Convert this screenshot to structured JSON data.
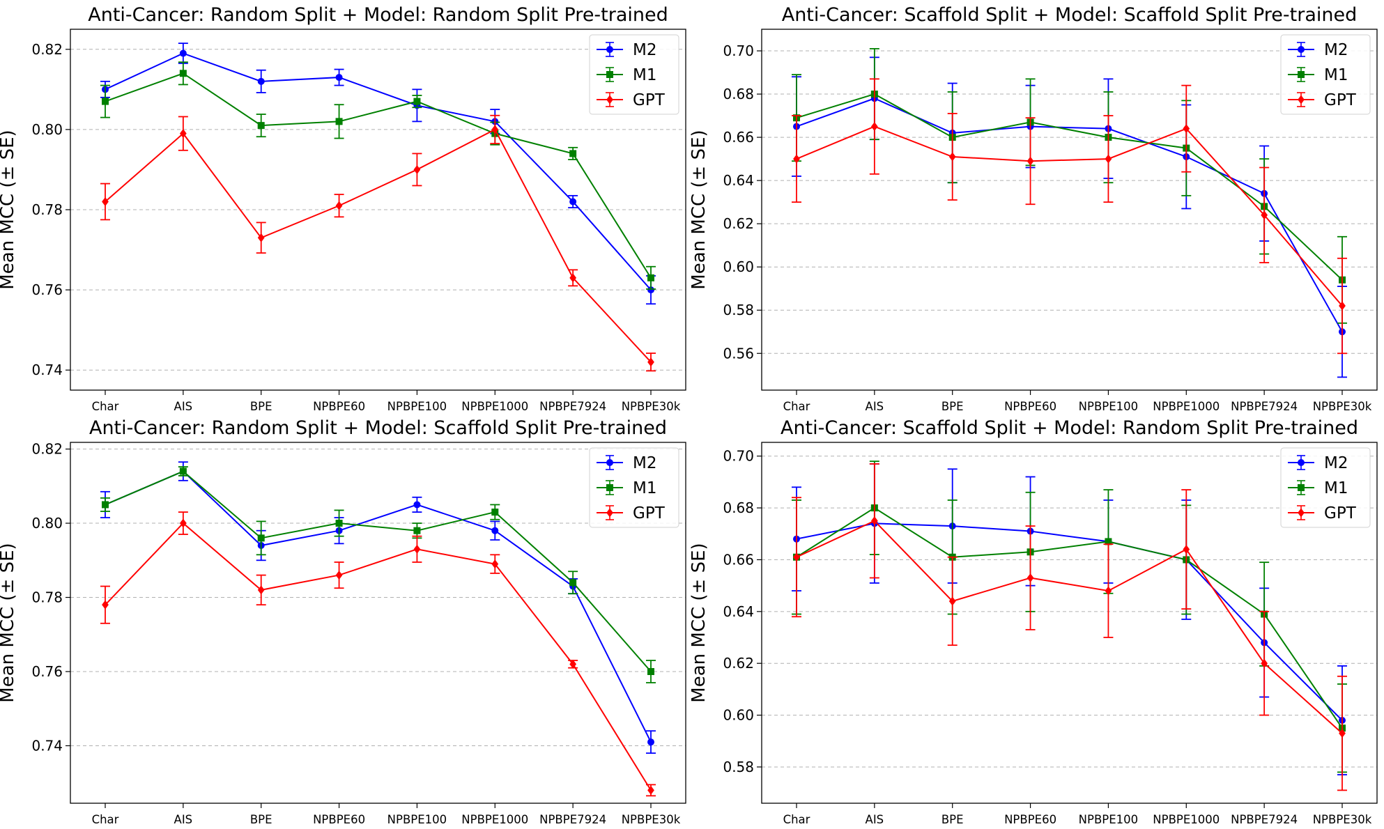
{
  "chart_data": [
    {
      "type": "line",
      "title": "Anti-Cancer: Random Split + Model: Random Split Pre-trained",
      "xlabel": "",
      "ylabel": "Mean MCC (± SE)",
      "categories": [
        "Char",
        "AIS",
        "BPE",
        "NPBPE60",
        "NPBPE100",
        "NPBPE1000",
        "NPBPE7924",
        "NPBPE30k"
      ],
      "ylim": [
        0.735,
        0.825
      ],
      "yticks": [
        "0.74",
        "0.76",
        "0.78",
        "0.80",
        "0.82"
      ],
      "grid": "y-dashed",
      "legend": "top-right",
      "series": [
        {
          "name": "M2",
          "color": "#0000ff",
          "marker": "circle",
          "values": [
            0.81,
            0.819,
            0.812,
            0.813,
            0.806,
            0.802,
            0.782,
            0.76
          ],
          "errors": [
            0.002,
            0.0025,
            0.0028,
            0.002,
            0.004,
            0.003,
            0.0015,
            0.0035
          ]
        },
        {
          "name": "M1",
          "color": "#008000",
          "marker": "square",
          "values": [
            0.807,
            0.814,
            0.801,
            0.802,
            0.807,
            0.799,
            0.794,
            0.763
          ],
          "errors": [
            0.004,
            0.0028,
            0.0028,
            0.0042,
            0.0015,
            0.0028,
            0.0015,
            0.0028
          ]
        },
        {
          "name": "GPT",
          "color": "#ff0000",
          "marker": "diamond",
          "values": [
            0.782,
            0.799,
            0.773,
            0.781,
            0.79,
            0.8,
            0.763,
            0.742
          ],
          "errors": [
            0.0045,
            0.0042,
            0.0038,
            0.0028,
            0.004,
            0.0035,
            0.002,
            0.0022
          ]
        }
      ]
    },
    {
      "type": "line",
      "title": "Anti-Cancer: Scaffold Split + Model: Scaffold Split Pre-trained",
      "xlabel": "",
      "ylabel": "Mean MCC (± SE)",
      "categories": [
        "Char",
        "AIS",
        "BPE",
        "NPBPE60",
        "NPBPE100",
        "NPBPE1000",
        "NPBPE7924",
        "NPBPE30k"
      ],
      "ylim": [
        0.543,
        0.71
      ],
      "yticks": [
        "0.56",
        "0.58",
        "0.60",
        "0.62",
        "0.64",
        "0.66",
        "0.68",
        "0.70"
      ],
      "grid": "y-dashed",
      "legend": "top-right",
      "series": [
        {
          "name": "M2",
          "color": "#0000ff",
          "marker": "circle",
          "values": [
            0.665,
            0.678,
            0.662,
            0.665,
            0.664,
            0.651,
            0.634,
            0.57
          ],
          "errors": [
            0.023,
            0.019,
            0.023,
            0.019,
            0.023,
            0.024,
            0.022,
            0.021
          ]
        },
        {
          "name": "M1",
          "color": "#008000",
          "marker": "square",
          "values": [
            0.669,
            0.68,
            0.66,
            0.667,
            0.66,
            0.655,
            0.628,
            0.594
          ],
          "errors": [
            0.02,
            0.021,
            0.021,
            0.02,
            0.021,
            0.022,
            0.022,
            0.02
          ]
        },
        {
          "name": "GPT",
          "color": "#ff0000",
          "marker": "diamond",
          "values": [
            0.65,
            0.665,
            0.651,
            0.649,
            0.65,
            0.664,
            0.624,
            0.582
          ],
          "errors": [
            0.02,
            0.022,
            0.02,
            0.02,
            0.02,
            0.02,
            0.022,
            0.022
          ]
        }
      ]
    },
    {
      "type": "line",
      "title": "Anti-Cancer: Random Split + Model: Scaffold Split Pre-trained",
      "xlabel": "",
      "ylabel": "Mean MCC (± SE)",
      "categories": [
        "Char",
        "AIS",
        "BPE",
        "NPBPE60",
        "NPBPE100",
        "NPBPE1000",
        "NPBPE7924",
        "NPBPE30k"
      ],
      "ylim": [
        0.7245,
        0.8218
      ],
      "yticks": [
        "0.74",
        "0.76",
        "0.78",
        "0.80",
        "0.82"
      ],
      "grid": "y-dashed",
      "legend": "top-right",
      "series": [
        {
          "name": "M2",
          "color": "#0000ff",
          "marker": "circle",
          "values": [
            0.805,
            0.814,
            0.794,
            0.798,
            0.805,
            0.798,
            0.783,
            0.741
          ],
          "errors": [
            0.0035,
            0.0025,
            0.004,
            0.0035,
            0.002,
            0.0025,
            0.002,
            0.003
          ]
        },
        {
          "name": "M1",
          "color": "#008000",
          "marker": "square",
          "values": [
            0.805,
            0.814,
            0.796,
            0.8,
            0.798,
            0.803,
            0.784,
            0.76
          ],
          "errors": [
            0.0018,
            0.0012,
            0.0045,
            0.0035,
            0.002,
            0.002,
            0.003,
            0.003
          ]
        },
        {
          "name": "GPT",
          "color": "#ff0000",
          "marker": "diamond",
          "values": [
            0.778,
            0.8,
            0.782,
            0.786,
            0.793,
            0.789,
            0.762,
            0.728
          ],
          "errors": [
            0.005,
            0.003,
            0.004,
            0.0035,
            0.0035,
            0.0025,
            0.001,
            0.0015
          ]
        }
      ]
    },
    {
      "type": "line",
      "title": "Anti-Cancer: Scaffold Split + Model: Random Split Pre-trained",
      "xlabel": "",
      "ylabel": "Mean MCC (± SE)",
      "categories": [
        "Char",
        "AIS",
        "BPE",
        "NPBPE60",
        "NPBPE100",
        "NPBPE1000",
        "NPBPE7924",
        "NPBPE30k"
      ],
      "ylim": [
        0.566,
        0.7053
      ],
      "yticks": [
        "0.58",
        "0.60",
        "0.62",
        "0.64",
        "0.66",
        "0.68",
        "0.70"
      ],
      "grid": "y-dashed",
      "legend": "top-right",
      "series": [
        {
          "name": "M2",
          "color": "#0000ff",
          "marker": "circle",
          "values": [
            0.668,
            0.674,
            0.673,
            0.671,
            0.667,
            0.66,
            0.628,
            0.598
          ],
          "errors": [
            0.02,
            0.023,
            0.022,
            0.021,
            0.016,
            0.023,
            0.021,
            0.021
          ]
        },
        {
          "name": "M1",
          "color": "#008000",
          "marker": "square",
          "values": [
            0.661,
            0.68,
            0.661,
            0.663,
            0.667,
            0.66,
            0.639,
            0.595
          ],
          "errors": [
            0.022,
            0.018,
            0.022,
            0.023,
            0.02,
            0.021,
            0.02,
            0.017
          ]
        },
        {
          "name": "GPT",
          "color": "#ff0000",
          "marker": "diamond",
          "values": [
            0.661,
            0.675,
            0.644,
            0.653,
            0.648,
            0.664,
            0.62,
            0.593
          ],
          "errors": [
            0.023,
            0.022,
            0.017,
            0.02,
            0.018,
            0.023,
            0.02,
            0.022
          ]
        }
      ]
    }
  ]
}
